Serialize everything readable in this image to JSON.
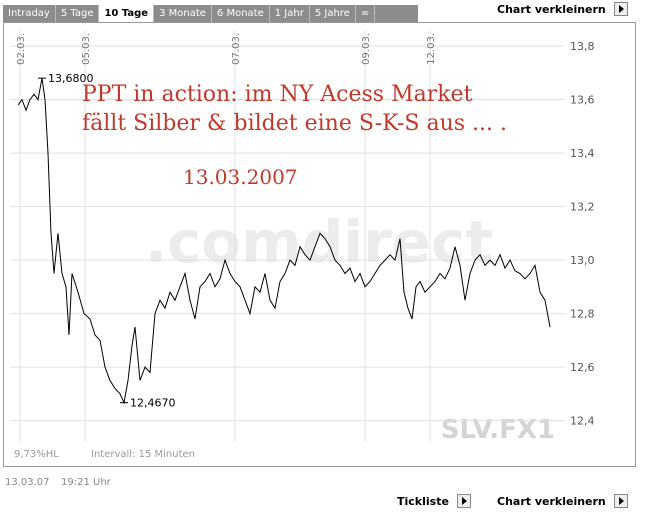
{
  "tabs": [
    "Intraday",
    "5 Tage",
    "10 Tage",
    "3 Monate",
    "6 Monate",
    "1 Jahr",
    "5 Jahre",
    "∞"
  ],
  "active_tab": "10 Tage",
  "top_link": "Chart verkleinern",
  "footer": {
    "date": "13.03.07",
    "time": "19:21 Uhr",
    "tickliste": "Tickliste",
    "verkleinern": "Chart verkleinern"
  },
  "chart_data": {
    "type": "line",
    "watermark": ".comdirect",
    "symbol": "SLV.FX1",
    "status_left": "9,73%HL",
    "status_interval": "Intervall: 15 Minuten",
    "annotations": [
      "PPT in action: im NY Acess Market",
      "fällt Silber & bildet eine S-K-S aus ... .",
      "13.03.2007"
    ],
    "high": {
      "x": 6.4,
      "value": 13.68,
      "label": "13,6800"
    },
    "low": {
      "x": 22.8,
      "value": 12.467,
      "label": "12,4670"
    },
    "xlim": [
      0,
      111
    ],
    "xticks": [
      {
        "value": 2,
        "label": "02.03."
      },
      {
        "value": 15,
        "label": "05.03."
      },
      {
        "value": 45,
        "label": "07.03."
      },
      {
        "value": 71,
        "label": "09.03."
      },
      {
        "value": 84,
        "label": "12.03."
      }
    ],
    "ylim": [
      12.32,
      13.86
    ],
    "yticks": [
      {
        "value": 12.4,
        "label": "12,4"
      },
      {
        "value": 12.6,
        "label": "12,6"
      },
      {
        "value": 12.8,
        "label": "12,8"
      },
      {
        "value": 13.0,
        "label": "13,0"
      },
      {
        "value": 13.2,
        "label": "13,2"
      },
      {
        "value": 13.4,
        "label": "13,4"
      },
      {
        "value": 13.6,
        "label": "13,6"
      },
      {
        "value": 13.8,
        "label": "13,8"
      }
    ],
    "grid": true,
    "series": [
      {
        "color": "#000000",
        "x": [
          1.6,
          2.4,
          3.2,
          4,
          4.8,
          5.6,
          6.4,
          7,
          7.6,
          8.2,
          8.8,
          9.6,
          10.4,
          11.2,
          11.8,
          12.4,
          13.6,
          14.8,
          16,
          17,
          18,
          19,
          20,
          21,
          22,
          22.8,
          23.6,
          24.4,
          25,
          26,
          27,
          28,
          29,
          30,
          31,
          32,
          33,
          34,
          35,
          36,
          37,
          38,
          39,
          40,
          41,
          42,
          43,
          44,
          45,
          46,
          47,
          48,
          49,
          50,
          51,
          52,
          53,
          54,
          55,
          56,
          57,
          58,
          59,
          60,
          61,
          62,
          63,
          64,
          65,
          66,
          67,
          68,
          69,
          70,
          71,
          72,
          73,
          74,
          75,
          76,
          77,
          78,
          78.8,
          79.6,
          80.4,
          81.2,
          82,
          83,
          84,
          85,
          86,
          87,
          88,
          89,
          90,
          91,
          92,
          93,
          94,
          95,
          96,
          97,
          98,
          99,
          100,
          101,
          102,
          103,
          104,
          105,
          106,
          107,
          108
        ],
        "values": [
          13.58,
          13.6,
          13.56,
          13.6,
          13.62,
          13.6,
          13.68,
          13.6,
          13.4,
          13.1,
          12.95,
          13.1,
          12.95,
          12.9,
          12.72,
          12.95,
          12.88,
          12.8,
          12.78,
          12.72,
          12.7,
          12.6,
          12.55,
          12.52,
          12.5,
          12.467,
          12.55,
          12.68,
          12.75,
          12.55,
          12.6,
          12.58,
          12.8,
          12.85,
          12.82,
          12.88,
          12.85,
          12.9,
          12.95,
          12.85,
          12.78,
          12.9,
          12.92,
          12.95,
          12.9,
          12.93,
          13.0,
          12.95,
          12.92,
          12.9,
          12.85,
          12.8,
          12.9,
          12.88,
          12.95,
          12.85,
          12.82,
          12.92,
          12.95,
          13.0,
          12.98,
          13.05,
          13.02,
          13.0,
          13.05,
          13.1,
          13.08,
          13.05,
          13.0,
          12.98,
          12.95,
          12.97,
          12.92,
          12.95,
          12.9,
          12.92,
          12.95,
          12.98,
          13.0,
          13.02,
          13.0,
          13.08,
          12.88,
          12.82,
          12.78,
          12.9,
          12.92,
          12.88,
          12.9,
          12.92,
          12.95,
          12.93,
          12.97,
          13.05,
          12.98,
          12.85,
          12.95,
          13.0,
          13.02,
          12.98,
          13.0,
          12.98,
          13.02,
          12.97,
          13.0,
          12.96,
          12.95,
          12.93,
          12.95,
          12.98,
          12.88,
          12.85,
          12.75
        ]
      }
    ]
  }
}
